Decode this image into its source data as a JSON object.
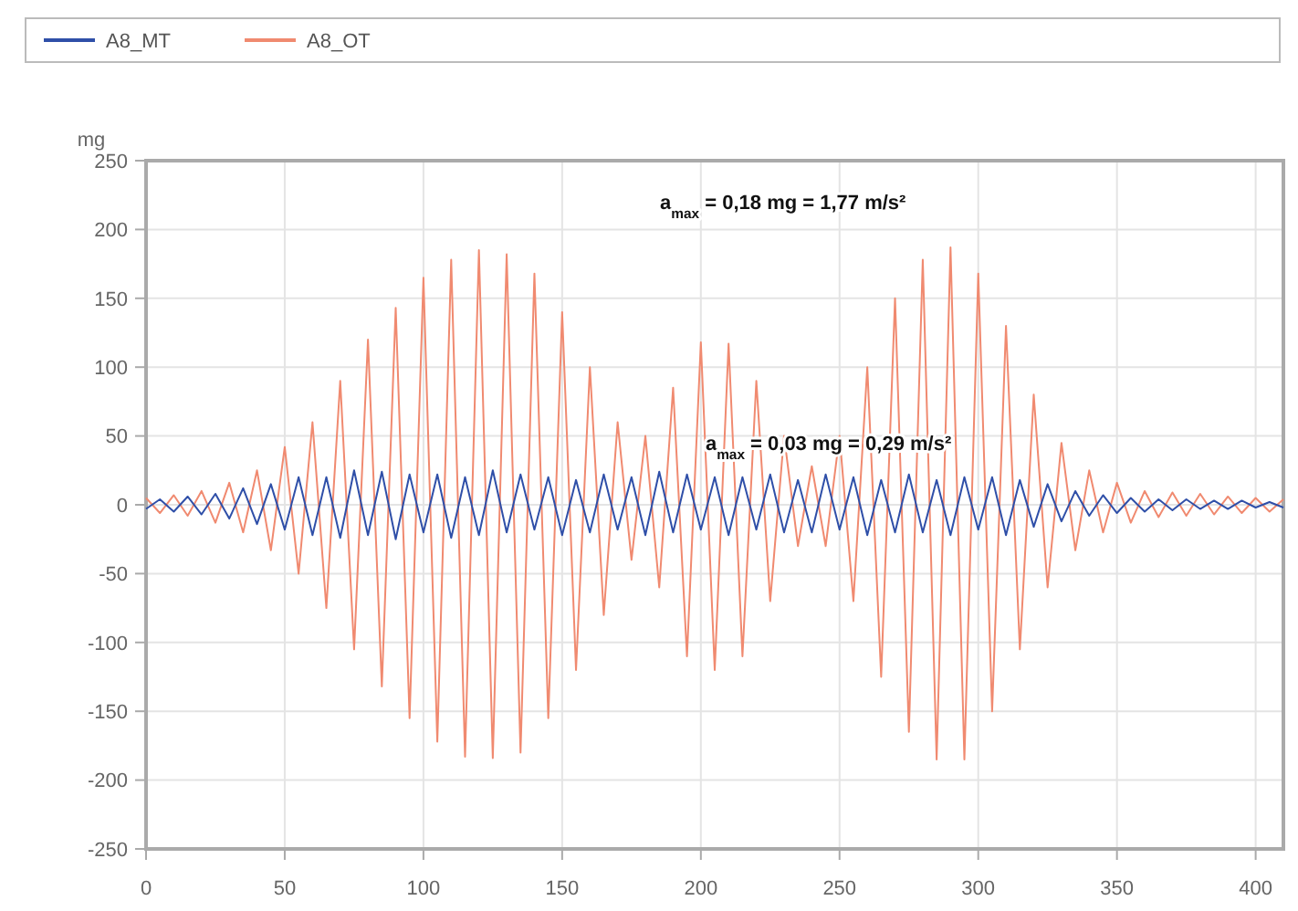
{
  "chart_data": {
    "type": "line",
    "ylabel": "mg",
    "x": [
      0,
      5,
      10,
      15,
      20,
      25,
      30,
      35,
      40,
      45,
      50,
      55,
      60,
      65,
      70,
      75,
      80,
      85,
      90,
      95,
      100,
      105,
      110,
      115,
      120,
      125,
      130,
      135,
      140,
      145,
      150,
      155,
      160,
      165,
      170,
      175,
      180,
      185,
      190,
      195,
      200,
      205,
      210,
      215,
      220,
      225,
      230,
      235,
      240,
      245,
      250,
      255,
      260,
      265,
      270,
      275,
      280,
      285,
      290,
      295,
      300,
      305,
      310,
      315,
      320,
      325,
      330,
      335,
      340,
      345,
      350,
      355,
      360,
      365,
      370,
      375,
      380,
      385,
      390,
      395,
      400,
      405,
      410
    ],
    "series": [
      {
        "name": "A8_MT",
        "color": "#2f4fa8",
        "values": [
          -3,
          4,
          -5,
          6,
          -7,
          8,
          -10,
          12,
          -14,
          15,
          -18,
          20,
          -22,
          20,
          -24,
          25,
          -22,
          24,
          -25,
          22,
          -20,
          22,
          -24,
          20,
          -22,
          25,
          -20,
          22,
          -18,
          20,
          -22,
          18,
          -20,
          22,
          -18,
          20,
          -22,
          24,
          -20,
          22,
          -18,
          20,
          -22,
          20,
          -18,
          22,
          -20,
          18,
          -20,
          22,
          -18,
          20,
          -22,
          18,
          -20,
          22,
          -20,
          18,
          -22,
          20,
          -18,
          20,
          -22,
          18,
          -16,
          15,
          -12,
          10,
          -8,
          7,
          -6,
          5,
          -5,
          4,
          -4,
          4,
          -3,
          3,
          -3,
          3,
          -2,
          2,
          -2
        ]
      },
      {
        "name": "A8_OT",
        "color": "#f08a70",
        "values": [
          5,
          -6,
          7,
          -8,
          10,
          -13,
          16,
          -20,
          25,
          -33,
          42,
          -50,
          60,
          -75,
          90,
          -105,
          120,
          -132,
          143,
          -155,
          165,
          -172,
          178,
          -183,
          185,
          -184,
          182,
          -180,
          168,
          -155,
          140,
          -120,
          100,
          -80,
          60,
          -40,
          50,
          -60,
          85,
          -110,
          118,
          -120,
          117,
          -110,
          90,
          -70,
          50,
          -30,
          28,
          -30,
          50,
          -70,
          100,
          -125,
          150,
          -165,
          178,
          -185,
          187,
          -185,
          168,
          -150,
          130,
          -105,
          80,
          -60,
          45,
          -33,
          25,
          -20,
          16,
          -13,
          10,
          -9,
          9,
          -8,
          8,
          -7,
          6,
          -6,
          5,
          -5,
          4
        ]
      }
    ],
    "xlim": [
      0,
      410
    ],
    "xticks": [
      0,
      50,
      100,
      150,
      200,
      250,
      300,
      350,
      400
    ],
    "ylim": [
      -250,
      250
    ],
    "yticks": [
      -250,
      -200,
      -150,
      -100,
      -50,
      0,
      50,
      100,
      150,
      200,
      250
    ],
    "grid": true,
    "legend": "top",
    "annotations": [
      "a$_{max}$ = 0,18 mg = 1,77 m/s²",
      "a$_{max}$ = 0,03 mg = 0,29 m/s²"
    ]
  }
}
